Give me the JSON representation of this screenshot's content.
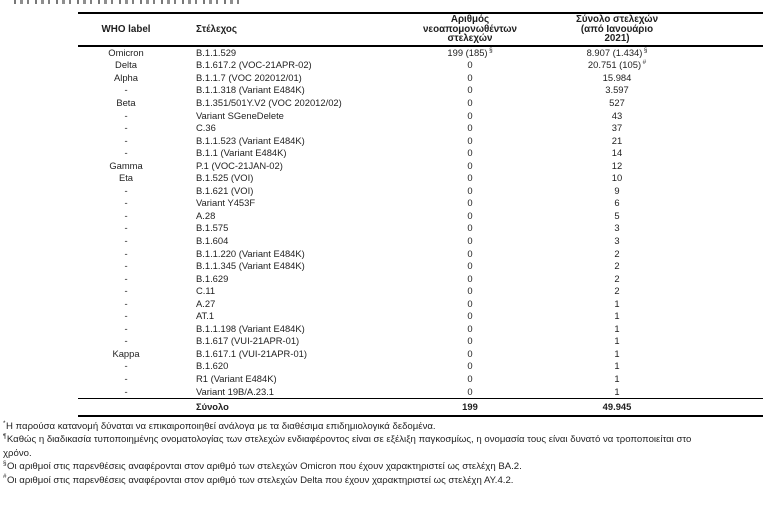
{
  "table": {
    "headers": {
      "who_label": "WHO label",
      "strain": "Στέλεχος",
      "new_isolates": "Αριθμός νεοαπομονωθέντων στελεχών",
      "total": "Σύνολο στελεχών (από Ιανουάριο 2021)"
    },
    "rows": [
      {
        "who": "Omicron",
        "strain": "B.1.1.529",
        "new": "199 (185)",
        "new_sup": "§",
        "total": "8.907 (1.434)",
        "total_sup": "§"
      },
      {
        "who": "Delta",
        "strain": "B.1.617.2 (VOC-21APR-02)",
        "new": "0",
        "total": "20.751 (105)",
        "total_sup": "#"
      },
      {
        "who": "Alpha",
        "strain": "B.1.1.7 (VOC 202012/01)",
        "new": "0",
        "total": "15.984"
      },
      {
        "who": "-",
        "strain": "B.1.1.318 (Variant E484K)",
        "new": "0",
        "total": "3.597"
      },
      {
        "who": "Beta",
        "strain": "B.1.351/501Y.V2 (VOC 202012/02)",
        "new": "0",
        "total": "527"
      },
      {
        "who": "-",
        "strain": "Variant SGeneDelete",
        "new": "0",
        "total": "43"
      },
      {
        "who": "-",
        "strain": "C.36",
        "new": "0",
        "total": "37"
      },
      {
        "who": "-",
        "strain": "B.1.1.523 (Variant E484K)",
        "new": "0",
        "total": "21"
      },
      {
        "who": "-",
        "strain": "B.1.1 (Variant E484K)",
        "new": "0",
        "total": "14"
      },
      {
        "who": "Gamma",
        "strain": "P.1 (VOC-21JAN-02)",
        "new": "0",
        "total": "12"
      },
      {
        "who": "Eta",
        "strain": "B.1.525 (VOI)",
        "new": "0",
        "total": "10"
      },
      {
        "who": "-",
        "strain": "B.1.621 (VOI)",
        "new": "0",
        "total": "9"
      },
      {
        "who": "-",
        "strain": "Variant Y453F",
        "new": "0",
        "total": "6"
      },
      {
        "who": "-",
        "strain": "A.28",
        "new": "0",
        "total": "5"
      },
      {
        "who": "-",
        "strain": "B.1.575",
        "new": "0",
        "total": "3"
      },
      {
        "who": "-",
        "strain": "B.1.604",
        "new": "0",
        "total": "3"
      },
      {
        "who": "-",
        "strain": "B.1.1.220 (Variant E484K)",
        "new": "0",
        "total": "2"
      },
      {
        "who": "-",
        "strain": "B.1.1.345 (Variant E484K)",
        "new": "0",
        "total": "2"
      },
      {
        "who": "-",
        "strain": "B.1.629",
        "new": "0",
        "total": "2"
      },
      {
        "who": "-",
        "strain": "C.11",
        "new": "0",
        "total": "2"
      },
      {
        "who": "-",
        "strain": "A.27",
        "new": "0",
        "total": "1"
      },
      {
        "who": "-",
        "strain": "AT.1",
        "new": "0",
        "total": "1"
      },
      {
        "who": "-",
        "strain": "B.1.1.198 (Variant E484K)",
        "new": "0",
        "total": "1"
      },
      {
        "who": "-",
        "strain": "B.1.617 (VUI-21APR-01)",
        "new": "0",
        "total": "1"
      },
      {
        "who": "Kappa",
        "strain": "B.1.617.1 (VUI-21APR-01)",
        "new": "0",
        "total": "1"
      },
      {
        "who": "-",
        "strain": "B.1.620",
        "new": "0",
        "total": "1"
      },
      {
        "who": "-",
        "strain": "R1 (Variant E484K)",
        "new": "0",
        "total": "1"
      },
      {
        "who": "-",
        "strain": "Variant 19B/A.23.1",
        "new": "0",
        "total": "1"
      }
    ],
    "total_row": {
      "label": "Σύνολο",
      "new": "199",
      "total": "49.945"
    }
  },
  "footnotes": [
    {
      "marker": "*",
      "text": "Η παρούσα κατανομή δύναται να επικαιροποιηθεί ανάλογα με τα διαθέσιμα επιδημιολογικά δεδομένα."
    },
    {
      "marker": "¶",
      "text": "Καθώς η διαδικασία τυποποιημένης ονοματολογίας των στελεχών ενδιαφέροντος είναι σε εξέλιξη παγκοσμίως, η ονομασία τους είναι δυνατό να τροποποιείται στο χρόνο."
    },
    {
      "marker": "§",
      "text": "Οι αριθμοί στις παρενθέσεις αναφέρονται στον αριθμό των στελεχών Omicron που έχουν χαρακτηριστεί ως στελέχη ΒΑ.2."
    },
    {
      "marker": "#",
      "text": "Οι αριθμοί στις παρενθέσεις αναφέρονται στον αριθμό των στελεχών Delta που έχουν χαρακτηριστεί ως στελέχη ΑΥ.4.2."
    }
  ]
}
